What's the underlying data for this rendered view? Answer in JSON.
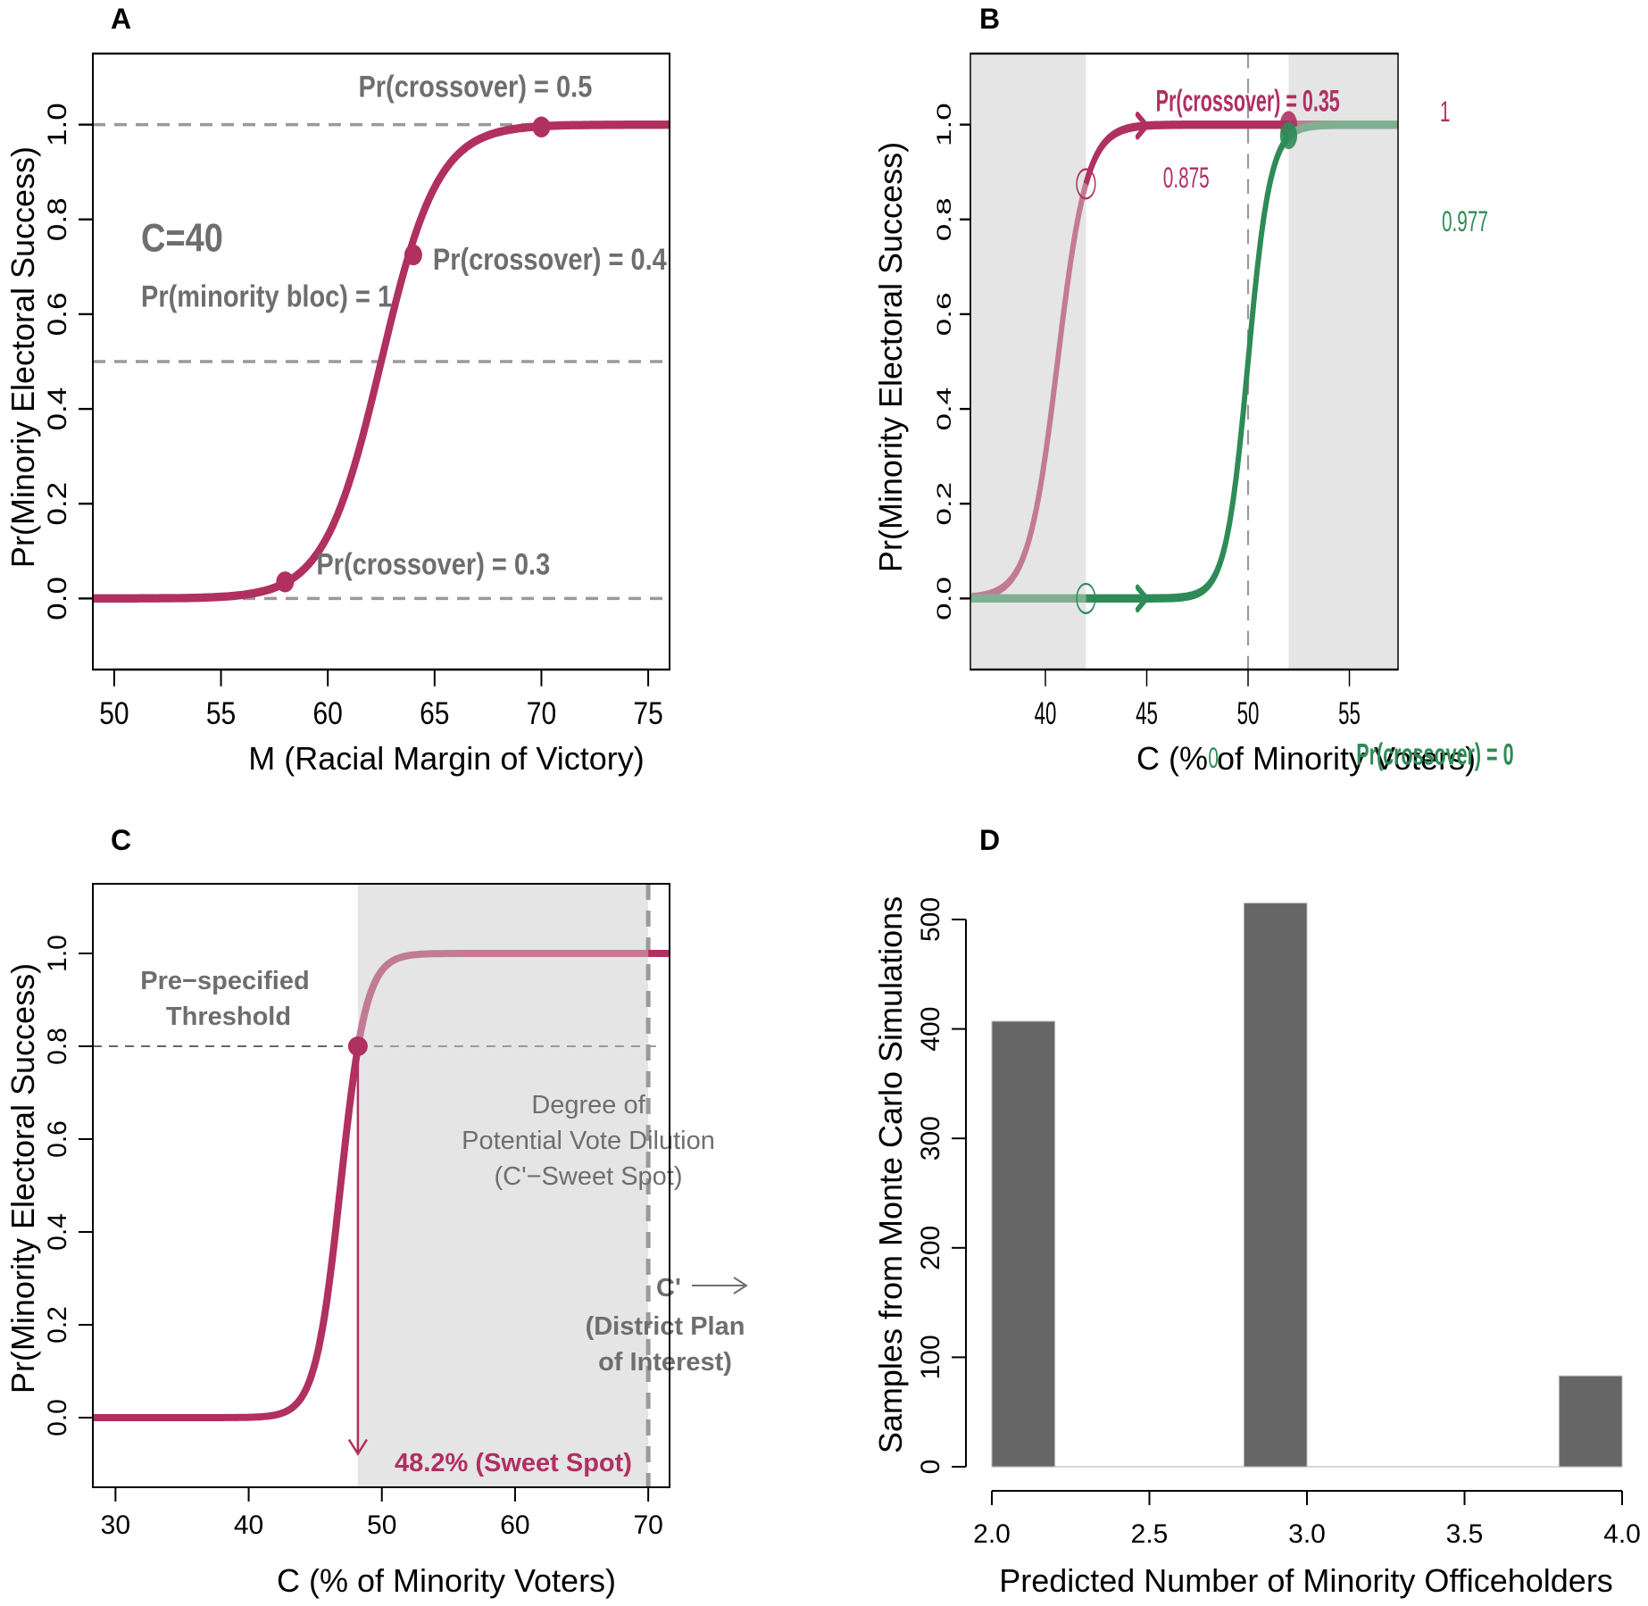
{
  "colors": {
    "maroon": "#b03060",
    "maroon_faded": "#c27b95",
    "green": "#2e8b57",
    "green_faded": "#7fb092",
    "gray_text": "#6e6e6e",
    "gray_line": "#9a9a9a",
    "shade": "#e5e5e5",
    "bar": "#666666"
  },
  "chart_data": [
    {
      "panel": "A",
      "type": "line",
      "xlabel": "M (Racial Margin of Victory)",
      "ylabel": "Pr(Minoriy Electoral Success)",
      "xlim": [
        49,
        76
      ],
      "ylim": [
        -0.15,
        1.15
      ],
      "xticks": [
        50,
        55,
        60,
        65,
        70,
        75
      ],
      "yticks": [
        "0.0",
        "0.2",
        "0.4",
        "0.6",
        "0.8",
        "1.0"
      ],
      "ytick_values": [
        0,
        0.2,
        0.4,
        0.6,
        0.8,
        1.0
      ],
      "curve": {
        "type": "logistic",
        "midpoint": 62.5,
        "scale": 1.33
      },
      "hlines": [
        0,
        0.5,
        1.0
      ],
      "points": [
        {
          "x": 58,
          "y": 0.035,
          "label": "Pr(crossover) = 0.3"
        },
        {
          "x": 64,
          "y": 0.725,
          "label": "Pr(crossover) = 0.4"
        },
        {
          "x": 70,
          "y": 0.995,
          "label": "Pr(crossover) = 0.5"
        }
      ],
      "annotations": {
        "c_label": "C=40",
        "bloc_label": "Pr(minority bloc) = 1"
      }
    },
    {
      "panel": "B",
      "type": "line",
      "xlabel": "C (% of Minority Voters)",
      "ylabel": "Pr(Minority Electoral Success)",
      "xlim": [
        36.3,
        57.4
      ],
      "ylim": [
        -0.15,
        1.15
      ],
      "xticks": [
        40,
        45,
        50,
        55
      ],
      "yticks": [
        "0.0",
        "0.2",
        "0.4",
        "0.6",
        "0.8",
        "1.0"
      ],
      "ytick_values": [
        0,
        0.2,
        0.4,
        0.6,
        0.8,
        1.0
      ],
      "shaded_ranges": [
        [
          36.3,
          42
        ],
        [
          52,
          57.4
        ]
      ],
      "vline": 50,
      "series": [
        {
          "name": "Pr(crossover) = 0.35",
          "curve": {
            "type": "logistic",
            "midpoint": 40.6,
            "scale": 0.72
          },
          "color": "maroon",
          "open_point": {
            "x": 42,
            "y": 0.875,
            "label": "0.875"
          },
          "filled_point": {
            "x": 52,
            "y": 1.0,
            "label": "1"
          }
        },
        {
          "name": "Pr(crossover) = 0",
          "curve": {
            "type": "logistic",
            "midpoint": 50.0,
            "scale": 0.55
          },
          "color": "green",
          "open_point": {
            "x": 42,
            "y": 0.0,
            "label": "0"
          },
          "filled_point": {
            "x": 52,
            "y": 0.977,
            "label": "0.977"
          }
        }
      ]
    },
    {
      "panel": "C",
      "type": "line",
      "xlabel": "C (% of Minority Voters)",
      "ylabel": "Pr(Minority Electoral Success)",
      "xlim": [
        28.3,
        71.6
      ],
      "ylim": [
        -0.15,
        1.15
      ],
      "xticks": [
        30,
        40,
        50,
        60,
        70
      ],
      "yticks": [
        "0.0",
        "0.2",
        "0.4",
        "0.6",
        "0.8",
        "1.0"
      ],
      "ytick_values": [
        0,
        0.2,
        0.4,
        0.6,
        0.8,
        1.0
      ],
      "curve": {
        "type": "logistic",
        "midpoint": 46.9,
        "scale": 0.95
      },
      "threshold": 0.8,
      "sweet_spot": 48.2,
      "c_prime": 70,
      "shaded_range": [
        48.2,
        70
      ],
      "annotations": {
        "threshold_line1": "Pre−specified",
        "threshold_line2": "Threshold",
        "dilution_line1": "Degree of",
        "dilution_line2": "Potential Vote Dilution",
        "dilution_line3": "(C'−Sweet Spot)",
        "cprime_label": "C'",
        "cprime_line2": "(District Plan",
        "cprime_line3": "of Interest)",
        "sweet_spot_label": "48.2% (Sweet Spot)"
      }
    },
    {
      "panel": "D",
      "type": "bar",
      "xlabel": "Predicted Number of Minority Officeholders",
      "ylabel": "Samples from Monte Carlo Simulations",
      "xlim": [
        2.0,
        4.0
      ],
      "ylim": [
        0,
        500
      ],
      "xticks": [
        "2.0",
        "2.5",
        "3.0",
        "3.5",
        "4.0"
      ],
      "xtick_values": [
        2.0,
        2.5,
        3.0,
        3.5,
        4.0
      ],
      "yticks": [
        "0",
        "100",
        "200",
        "300",
        "400",
        "500"
      ],
      "ytick_values": [
        0,
        100,
        200,
        300,
        400,
        500
      ],
      "bars": [
        {
          "x0": 2.0,
          "x1": 2.2,
          "value": 407
        },
        {
          "x0": 2.8,
          "x1": 3.0,
          "value": 515
        },
        {
          "x0": 3.8,
          "x1": 4.0,
          "value": 83
        }
      ]
    }
  ]
}
